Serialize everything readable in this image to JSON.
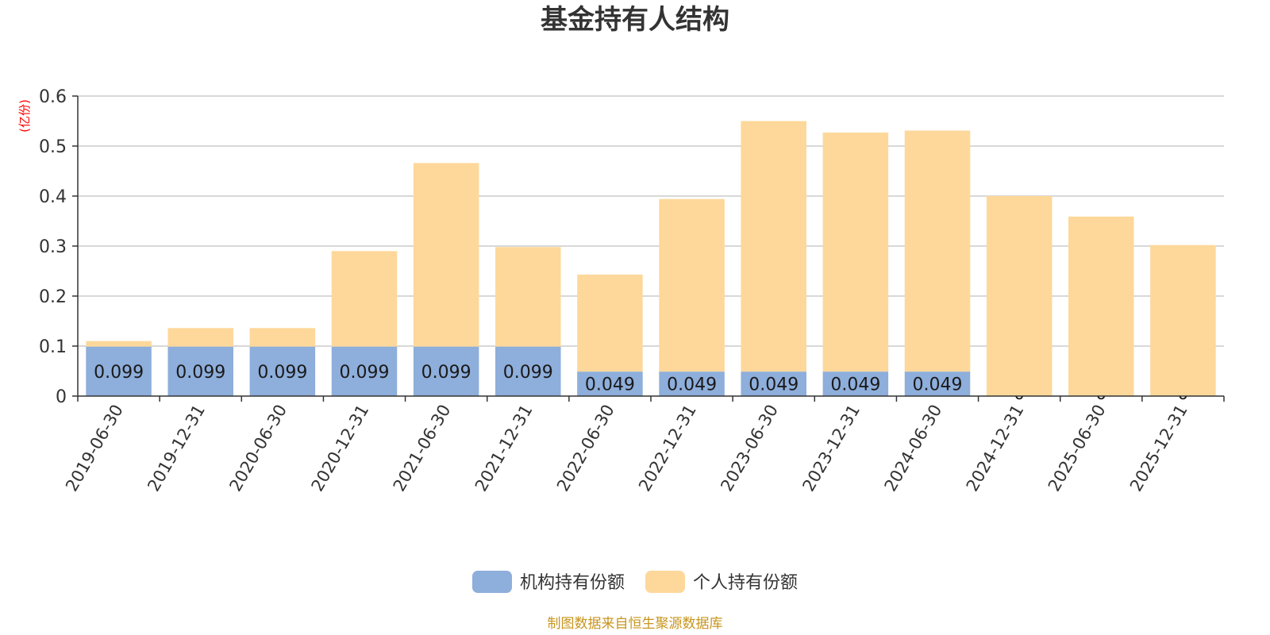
{
  "chart_data": {
    "type": "bar",
    "stacked": true,
    "title": "基金持有人结构",
    "unit_label": "(亿份)",
    "categories": [
      "2019-06-30",
      "2019-12-31",
      "2020-06-30",
      "2020-12-31",
      "2021-06-30",
      "2021-12-31",
      "2022-06-30",
      "2022-12-31",
      "2023-06-30",
      "2023-12-31",
      "2024-06-30",
      "2024-12-31",
      "2025-06-30",
      "2025-12-31"
    ],
    "series": [
      {
        "name": "机构持有份额",
        "color": "#8eaedb",
        "values": [
          0.099,
          0.099,
          0.099,
          0.099,
          0.099,
          0.099,
          0.049,
          0.049,
          0.049,
          0.049,
          0.049,
          0,
          0,
          0
        ],
        "labels": [
          "0.099",
          "0.099",
          "0.099",
          "0.099",
          "0.099",
          "0.099",
          "0.049",
          "0.049",
          "0.049",
          "0.049",
          "0.049",
          "0",
          "0",
          "0"
        ]
      },
      {
        "name": "个人持有份额",
        "color": "#fdd89a",
        "values": [
          0.011,
          0.037,
          0.037,
          0.191,
          0.367,
          0.199,
          0.194,
          0.345,
          0.501,
          0.478,
          0.482,
          0.4,
          0.359,
          0.302
        ]
      }
    ],
    "ylim": [
      0,
      0.6
    ],
    "yticks": [
      0,
      0.1,
      0.2,
      0.3,
      0.4,
      0.5,
      0.6
    ],
    "ytick_labels": [
      "0",
      "0.1",
      "0.2",
      "0.3",
      "0.4",
      "0.5",
      "0.6"
    ],
    "grid": true,
    "legend_position": "bottom-center",
    "source": "制图数据来自恒生聚源数据库"
  }
}
